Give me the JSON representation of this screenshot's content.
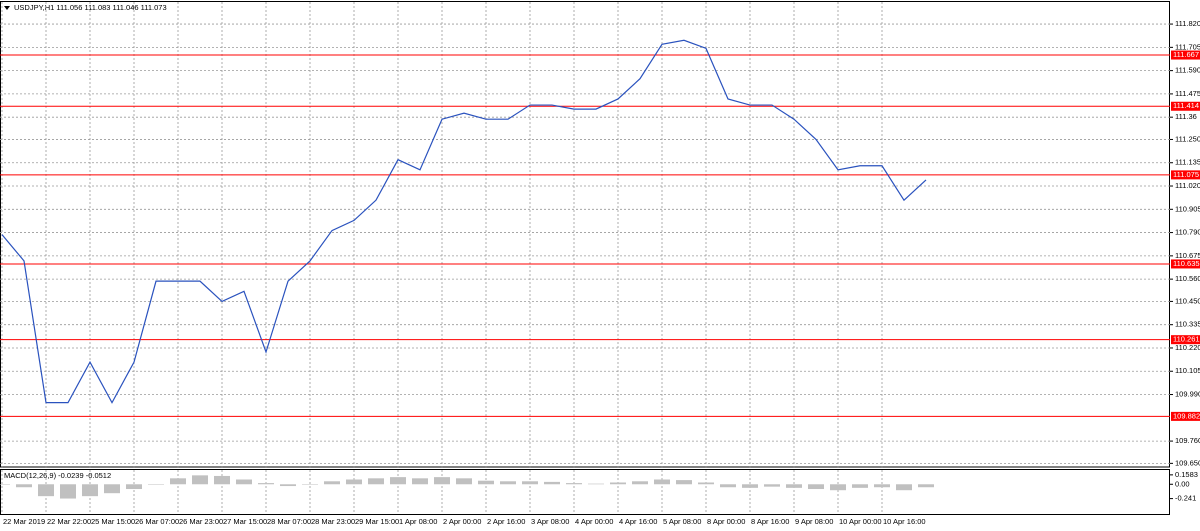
{
  "chart_data": [
    {
      "type": "line",
      "title": "USDJPY,H1  111.056 111.083 111.046 111.073",
      "color": "#2a52be",
      "grid": true,
      "categories": [
        "22 Mar 2019",
        null,
        "22 Mar 22:00",
        null,
        "25 Mar 15:00",
        null,
        "26 Mar 07:00",
        null,
        "26 Mar 23:00",
        null,
        "27 Mar 15:00",
        null,
        "28 Mar 07:00",
        null,
        "28 Mar 23:00",
        null,
        "29 Mar 15:00",
        null,
        "1 Apr 08:00",
        null,
        "2 Apr 00:00",
        null,
        "2 Apr 16:00",
        null,
        "3 Apr 08:00",
        null,
        "4 Apr 00:00",
        null,
        "4 Apr 16:00",
        null,
        "5 Apr 08:00",
        null,
        "8 Apr 00:00",
        null,
        "8 Apr 16:00",
        null,
        "9 Apr 08:00",
        null,
        "10 Apr 00:00",
        null,
        "10 Apr 16:00",
        null,
        null
      ],
      "values": [
        110.78,
        110.65,
        109.95,
        109.95,
        110.15,
        109.95,
        110.15,
        110.55,
        110.55,
        110.55,
        110.45,
        110.5,
        110.2,
        110.55,
        110.65,
        110.8,
        110.85,
        110.95,
        111.15,
        111.1,
        111.35,
        111.38,
        111.35,
        111.35,
        111.42,
        111.42,
        111.4,
        111.4,
        111.45,
        111.55,
        111.72,
        111.74,
        111.7,
        111.45,
        111.42,
        111.42,
        111.35,
        111.25,
        111.1,
        111.12,
        111.12,
        110.95,
        111.05
      ],
      "ylim": [
        109.632,
        111.929
      ],
      "yticks": [
        {
          "value": 111.82,
          "label": "111.820"
        },
        111.705,
        {
          "value": 111.59,
          "label": "111.590"
        },
        111.475,
        111.36,
        {
          "value": 111.25,
          "label": "111.250"
        },
        111.135,
        {
          "value": 111.02,
          "label": "111.020"
        },
        110.905,
        {
          "value": 110.79,
          "label": "110.790"
        },
        110.675,
        {
          "value": 110.56,
          "label": "110.560"
        },
        {
          "value": 110.45,
          "label": "110.450"
        },
        110.335,
        {
          "value": 110.22,
          "label": "110.220"
        },
        110.105,
        {
          "value": 109.99,
          "label": "109.990"
        },
        {
          "value": 109.76,
          "label": "109.760"
        },
        {
          "value": 109.65,
          "label": "109.650"
        }
      ],
      "levels": [
        111.667,
        111.414,
        111.075,
        110.635,
        110.261,
        109.882
      ],
      "level_color": "#ff0000"
    },
    {
      "type": "bar",
      "title": "MACD(12,26,9) -0.0239 -0.0512",
      "color": "#c0c0c0",
      "values": [
        0.0,
        -0.05,
        -0.2,
        -0.24,
        -0.2,
        -0.15,
        -0.08,
        0.0,
        0.1,
        0.15,
        0.14,
        0.08,
        0.02,
        -0.03,
        0.0,
        0.05,
        0.08,
        0.1,
        0.12,
        0.1,
        0.12,
        0.1,
        0.06,
        0.05,
        0.05,
        0.04,
        0.02,
        0.01,
        0.03,
        0.05,
        0.08,
        0.07,
        0.03,
        -0.05,
        -0.06,
        -0.04,
        -0.06,
        -0.08,
        -0.1,
        -0.06,
        -0.05,
        -0.1,
        -0.05
      ],
      "ylim": [
        -0.5,
        0.24
      ],
      "yticks": [
        0.1583,
        {
          "value": 0,
          "label": "0.00"
        },
        -0.241
      ]
    }
  ]
}
